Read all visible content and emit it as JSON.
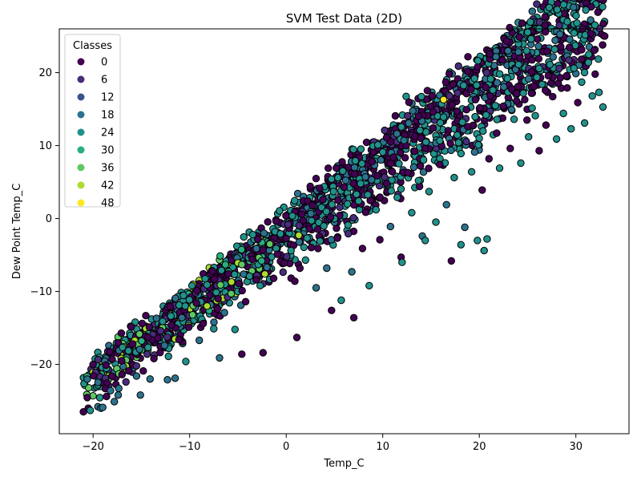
{
  "chart_data": {
    "type": "scatter",
    "title": "SVM Test Data (2D)",
    "xlabel": "Temp_C",
    "ylabel": "Dew Point Temp_C",
    "xlim": [
      -23.5,
      35.5
    ],
    "ylim": [
      -29.5,
      26
    ],
    "x_ticks": [
      -20,
      -10,
      0,
      10,
      20,
      30
    ],
    "y_ticks": [
      -20,
      -10,
      0,
      10,
      20
    ],
    "x_tick_labels": [
      "−20",
      "−10",
      "0",
      "10",
      "20",
      "30"
    ],
    "y_tick_labels": [
      "−20",
      "−10",
      "0",
      "10",
      "20"
    ],
    "grid": false,
    "colormap": "viridis",
    "class_range": [
      0,
      50
    ],
    "marker_edge_color": "#000000",
    "legend": {
      "title": "Classes",
      "placement": "upper-left",
      "entries": [
        {
          "label": "0",
          "color": "#440154"
        },
        {
          "label": "6",
          "color": "#472d7b"
        },
        {
          "label": "12",
          "color": "#3b528b"
        },
        {
          "label": "18",
          "color": "#2c728e"
        },
        {
          "label": "24",
          "color": "#21918c"
        },
        {
          "label": "30",
          "color": "#28ae80"
        },
        {
          "label": "36",
          "color": "#5ec962"
        },
        {
          "label": "42",
          "color": "#addc30"
        },
        {
          "label": "48",
          "color": "#fde725"
        }
      ]
    },
    "points": [
      [
        -21,
        -26.5,
        0
      ],
      [
        -20.5,
        -26,
        0
      ],
      [
        -19.5,
        -25.8,
        18
      ],
      [
        -19.2,
        -26,
        18
      ],
      [
        -18.6,
        -24.4,
        0
      ],
      [
        -18.2,
        -23.6,
        18
      ],
      [
        -17.8,
        -25.1,
        18
      ],
      [
        -17.4,
        -24.2,
        18
      ],
      [
        -17.0,
        -21.4,
        0
      ],
      [
        -16.6,
        -22.4,
        6
      ],
      [
        -16.3,
        -20.9,
        0
      ],
      [
        -15.9,
        -17.2,
        0
      ],
      [
        -15.5,
        -21.6,
        18
      ],
      [
        -15.1,
        -24.2,
        18
      ],
      [
        -14.8,
        -20.9,
        0
      ],
      [
        -14.4,
        -18.6,
        6
      ],
      [
        -14.1,
        -22.0,
        18
      ],
      [
        -13.7,
        -19.2,
        0
      ],
      [
        -13.3,
        -16.4,
        0
      ],
      [
        -13.0,
        -15.4,
        6
      ],
      [
        -12.6,
        -17.4,
        18
      ],
      [
        -12.2,
        -18.9,
        24
      ],
      [
        -11.9,
        -14.6,
        0
      ],
      [
        -11.5,
        -21.9,
        18
      ],
      [
        -11.1,
        -16.6,
        0
      ],
      [
        -10.8,
        -13.6,
        18
      ],
      [
        -10.4,
        -19.6,
        24
      ],
      [
        -10.1,
        -14.9,
        0
      ],
      [
        -9.7,
        -13.2,
        36
      ],
      [
        -9.3,
        -11.6,
        0
      ],
      [
        -9.0,
        -16.7,
        18
      ],
      [
        -8.6,
        -14.4,
        0
      ],
      [
        -8.2,
        -12.0,
        42
      ],
      [
        -7.9,
        -10.5,
        0
      ],
      [
        -7.5,
        -15.1,
        24
      ],
      [
        -7.1,
        -12.4,
        0
      ],
      [
        -6.8,
        -9.1,
        36
      ],
      [
        -6.4,
        -12.9,
        18
      ],
      [
        -6.0,
        -7.6,
        0
      ],
      [
        -5.7,
        -10.3,
        36
      ],
      [
        -5.3,
        -15.2,
        24
      ],
      [
        -4.9,
        -8.9,
        0
      ],
      [
        -4.6,
        -6.3,
        36
      ],
      [
        -4.2,
        -11.4,
        0
      ],
      [
        -3.8,
        -7.9,
        24
      ],
      [
        -3.5,
        -5.6,
        0
      ],
      [
        -3.1,
        -8.4,
        0
      ],
      [
        -2.7,
        -9.2,
        24
      ],
      [
        -2.4,
        -4.3,
        0
      ],
      [
        -2.0,
        -6.7,
        18
      ],
      [
        -1.7,
        -3.5,
        36
      ],
      [
        -1.3,
        -8.2,
        0
      ],
      [
        -0.9,
        -4.9,
        0
      ],
      [
        -0.6,
        -2.1,
        24
      ],
      [
        -0.2,
        -6.1,
        0
      ],
      [
        0.2,
        -0.8,
        6
      ],
      [
        0.5,
        -4.4,
        24
      ],
      [
        0.9,
        -8.6,
        0
      ],
      [
        1.3,
        -2.3,
        42
      ],
      [
        1.6,
        0.6,
        0
      ],
      [
        2.0,
        -5.7,
        24
      ],
      [
        2.4,
        -1.4,
        0
      ],
      [
        2.7,
        1.8,
        0
      ],
      [
        3.1,
        -9.5,
        18
      ],
      [
        3.5,
        -3.1,
        24
      ],
      [
        3.8,
        2.6,
        0
      ],
      [
        4.2,
        -6.8,
        18
      ],
      [
        4.6,
        0.2,
        0
      ],
      [
        4.9,
        3.7,
        24
      ],
      [
        5.3,
        -2.7,
        0
      ],
      [
        5.7,
        -11.2,
        24
      ],
      [
        6.0,
        4.3,
        0
      ],
      [
        6.4,
        -0.9,
        24
      ],
      [
        6.8,
        -7.3,
        18
      ],
      [
        7.1,
        6.1,
        0
      ],
      [
        7.5,
        2.4,
        24
      ],
      [
        7.9,
        -4.1,
        0
      ],
      [
        8.2,
        5.7,
        18
      ],
      [
        8.6,
        -9.2,
        24
      ],
      [
        8.9,
        7.8,
        0
      ],
      [
        9.3,
        1.2,
        24
      ],
      [
        9.7,
        -2.9,
        0
      ],
      [
        10.0,
        9.1,
        24
      ],
      [
        10.4,
        4.8,
        0
      ],
      [
        10.8,
        -1.1,
        18
      ],
      [
        11.1,
        8.4,
        0
      ],
      [
        11.5,
        2.9,
        24
      ],
      [
        11.9,
        -5.3,
        0
      ],
      [
        12.2,
        10.7,
        18
      ],
      [
        12.6,
        6.3,
        0
      ],
      [
        13.0,
        0.8,
        24
      ],
      [
        13.3,
        11.3,
        0
      ],
      [
        13.7,
        5.2,
        24
      ],
      [
        14.1,
        -2.4,
        18
      ],
      [
        14.4,
        9.6,
        0
      ],
      [
        14.8,
        3.7,
        24
      ],
      [
        15.2,
        12.4,
        0
      ],
      [
        15.5,
        -0.5,
        24
      ],
      [
        15.9,
        7.4,
        0
      ],
      [
        16.3,
        13.9,
        24
      ],
      [
        16.6,
        1.9,
        18
      ],
      [
        17.0,
        10.3,
        0
      ],
      [
        17.4,
        5.6,
        24
      ],
      [
        17.7,
        14.7,
        0
      ],
      [
        18.1,
        8.9,
        24
      ],
      [
        18.5,
        -1.2,
        18
      ],
      [
        18.8,
        12.6,
        0
      ],
      [
        19.2,
        6.4,
        24
      ],
      [
        19.6,
        16.3,
        0
      ],
      [
        19.9,
        10.1,
        24
      ],
      [
        20.3,
        3.9,
        0
      ],
      [
        20.7,
        14.2,
        24
      ],
      [
        21.0,
        8.2,
        0
      ],
      [
        21.4,
        17.6,
        24
      ],
      [
        21.8,
        11.7,
        0
      ],
      [
        22.1,
        6.9,
        24
      ],
      [
        22.5,
        15.4,
        0
      ],
      [
        22.9,
        19.2,
        24
      ],
      [
        23.2,
        9.6,
        0
      ],
      [
        23.6,
        13.6,
        24
      ],
      [
        24.0,
        18.1,
        0
      ],
      [
        24.3,
        7.6,
        24
      ],
      [
        24.7,
        16.3,
        0
      ],
      [
        25.1,
        11.2,
        24
      ],
      [
        25.4,
        20.1,
        0
      ],
      [
        25.8,
        14.1,
        24
      ],
      [
        26.2,
        9.3,
        0
      ],
      [
        26.5,
        18.4,
        24
      ],
      [
        26.9,
        12.8,
        0
      ],
      [
        27.3,
        21.1,
        24
      ],
      [
        27.6,
        16.7,
        0
      ],
      [
        28.0,
        10.9,
        24
      ],
      [
        28.4,
        19.3,
        0
      ],
      [
        28.7,
        14.4,
        24
      ],
      [
        29.1,
        17.9,
        0
      ],
      [
        29.5,
        12.3,
        24
      ],
      [
        29.8,
        20.6,
        24
      ],
      [
        30.2,
        15.9,
        0
      ],
      [
        30.6,
        18.7,
        24
      ],
      [
        30.9,
        13.1,
        24
      ],
      [
        31.3,
        21.4,
        24
      ],
      [
        31.7,
        16.8,
        24
      ],
      [
        32.0,
        19.8,
        0
      ],
      [
        32.4,
        17.3,
        24
      ],
      [
        32.8,
        15.3,
        24
      ],
      [
        24.9,
        23.0,
        24
      ],
      [
        27.8,
        23.2,
        24
      ],
      [
        16.3,
        16.3,
        48
      ],
      [
        14.4,
        -3.0,
        24
      ],
      [
        17.1,
        -5.8,
        0
      ],
      [
        20.5,
        -4.4,
        24
      ],
      [
        20.8,
        -2.8,
        24
      ],
      [
        7.0,
        -13.6,
        0
      ],
      [
        1.1,
        -16.3,
        0
      ],
      [
        -2.4,
        -18.4,
        0
      ],
      [
        -4.6,
        -18.6,
        0
      ],
      [
        -6.9,
        -19.1,
        18
      ],
      [
        -12.3,
        -22.1,
        18
      ],
      [
        -19.0,
        -25.9,
        18
      ],
      [
        -20.3,
        -26.3,
        24
      ],
      [
        18.1,
        -3.6,
        24
      ],
      [
        19.8,
        -3.0,
        24
      ],
      [
        12.0,
        -6.0,
        24
      ],
      [
        4.7,
        -12.6,
        0
      ]
    ],
    "point_cloud": {
      "seed": 20240,
      "count": 1900,
      "x_range": [
        -21,
        33
      ],
      "upper_line": {
        "slope": 1.05,
        "intercept": 0.5
      },
      "lower_line": {
        "slope": 0.86,
        "intercept": -6.5
      },
      "scatter_sd": 1.8
    }
  }
}
